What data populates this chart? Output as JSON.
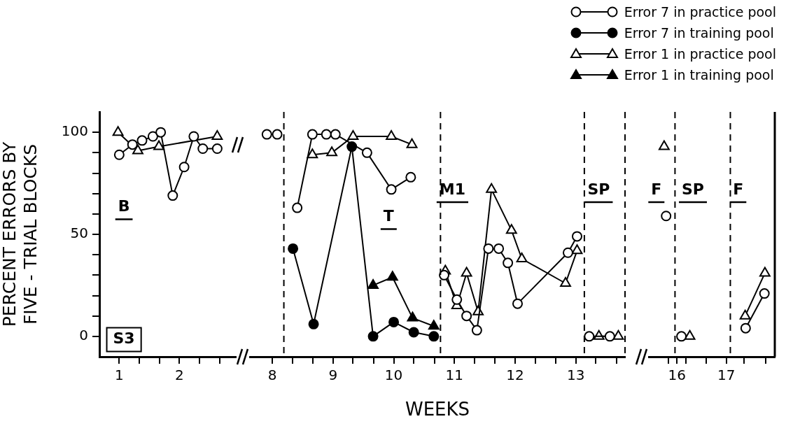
{
  "chart_data": [
    {
      "type": "line",
      "ylabel": "PERCENT ERRORS BY\nFIVE - TRIAL BLOCKS",
      "xlim": [
        0.67,
        2.94
      ],
      "xticks": [
        1,
        {
          "value": 1.33,
          "label": null
        },
        {
          "value": 1.67,
          "label": null
        },
        2,
        {
          "value": 2.33,
          "label": null
        },
        {
          "value": 2.67,
          "label": null
        }
      ],
      "ylim": [
        -10,
        110
      ],
      "yticks": [
        0,
        {
          "value": 10,
          "label": null
        },
        {
          "value": 20,
          "label": null
        },
        {
          "value": 30,
          "label": null
        },
        {
          "value": 40,
          "label": null
        },
        50,
        {
          "value": 60,
          "label": null
        },
        {
          "value": 70,
          "label": null
        },
        {
          "value": 80,
          "label": null
        },
        {
          "value": 90,
          "label": null
        },
        100
      ],
      "grid": false,
      "line_style": "solid",
      "annotations": [
        "S3",
        "B"
      ],
      "series": [
        {
          "color": "#000000",
          "marker": "circle-open",
          "x": [
            1.0,
            1.22,
            1.38,
            1.56,
            1.69,
            1.89,
            2.08,
            2.24,
            2.39,
            2.63
          ],
          "values": [
            89,
            94,
            96,
            98,
            100,
            69,
            83,
            98,
            92,
            92
          ]
        },
        {
          "color": "#000000",
          "marker": "triangle-open",
          "x": [
            0.98,
            1.31,
            1.66,
            2.63
          ],
          "values": [
            100,
            91,
            93,
            98
          ]
        }
      ]
    },
    {
      "type": "line",
      "xlabel": "WEEKS",
      "xlim": [
        7.63,
        13.81
      ],
      "xticks": [
        8,
        {
          "value": 8.33,
          "label": null
        },
        {
          "value": 8.67,
          "label": null
        },
        9,
        {
          "value": 9.33,
          "label": null
        },
        {
          "value": 9.67,
          "label": null
        },
        10,
        {
          "value": 10.33,
          "label": null
        },
        {
          "value": 10.67,
          "label": null
        },
        11,
        {
          "value": 11.33,
          "label": null
        },
        {
          "value": 11.67,
          "label": null
        },
        12,
        {
          "value": 12.33,
          "label": null
        },
        {
          "value": 12.67,
          "label": null
        },
        13,
        {
          "value": 13.33,
          "label": null
        },
        {
          "value": 13.67,
          "label": null
        }
      ],
      "ylim": [
        -10,
        110
      ],
      "yticks": [
        0,
        50,
        100
      ],
      "tick_labels": "x",
      "grid": false,
      "legend": "top right",
      "line_style": "solid",
      "ref_lines": [
        {
          "axis": "x",
          "value": 8.19,
          "color": "#000000",
          "line_style": "dashed"
        },
        {
          "axis": "x",
          "value": 10.77,
          "color": "#000000",
          "line_style": "dashed"
        },
        {
          "axis": "x",
          "value": 13.14,
          "color": "#000000",
          "line_style": "dashed"
        },
        {
          "axis": "x",
          "value": 13.81,
          "color": "#000000",
          "line_style": "dashed"
        }
      ],
      "annotations": [
        "T",
        "M1",
        "SP"
      ],
      "series": [
        {
          "name": "Error 7 in practice pool",
          "color": "#000000",
          "marker": "circle-open",
          "x": [
            7.91,
            8.08,
            8.19,
            8.41,
            8.66,
            8.89,
            9.04,
            9.56,
            9.96,
            10.28,
            10.77,
            10.83,
            11.04,
            11.2,
            11.37,
            11.56,
            11.73,
            11.88,
            12.04,
            12.87,
            13.02,
            13.14,
            13.22,
            13.56
          ],
          "values": [
            99,
            99,
            null,
            63,
            99,
            99,
            99,
            90,
            72,
            78,
            null,
            30,
            18,
            10,
            3,
            43,
            43,
            36,
            16,
            41,
            49,
            null,
            0,
            0
          ]
        },
        {
          "name": "Error 7 in training pool",
          "color": "#000000",
          "marker": "circle",
          "x": [
            8.34,
            8.68,
            9.31,
            9.66,
            10.0,
            10.33,
            10.66
          ],
          "values": [
            43,
            6,
            93,
            0,
            7,
            2,
            0
          ]
        },
        {
          "name": "Error 1 in practice pool",
          "color": "#000000",
          "marker": "triangle-open",
          "x": [
            8.66,
            8.98,
            9.33,
            9.96,
            10.3,
            10.77,
            10.85,
            11.04,
            11.2,
            11.39,
            11.61,
            11.94,
            12.11,
            12.83,
            13.02,
            13.14,
            13.38,
            13.7
          ],
          "values": [
            89,
            90,
            98,
            98,
            94,
            null,
            32,
            15,
            31,
            12,
            72,
            52,
            38,
            26,
            42,
            null,
            0,
            0
          ]
        },
        {
          "name": "Error 1 in training pool",
          "color": "#000000",
          "marker": "triangle",
          "x": [
            9.66,
            9.98,
            10.31,
            10.66
          ],
          "values": [
            25,
            29,
            9,
            5
          ]
        }
      ]
    },
    {
      "type": "line",
      "xlim": [
        15.43,
        17.98
      ],
      "xticks": [
        {
          "value": 15.83,
          "label": null
        },
        16,
        {
          "value": 16.18,
          "label": null
        },
        {
          "value": 16.59,
          "label": null
        },
        17,
        {
          "value": 17.36,
          "label": null
        },
        {
          "value": 17.79,
          "label": null
        }
      ],
      "ylim": [
        -10,
        110
      ],
      "yticks": [
        0,
        50,
        100
      ],
      "tick_labels": "x",
      "grid": false,
      "line_style": "solid",
      "ref_lines": [
        {
          "axis": "x",
          "value": 15.96,
          "color": "#000000",
          "line_style": "dashed"
        },
        {
          "axis": "x",
          "value": 17.08,
          "color": "#000000",
          "line_style": "dashed"
        }
      ],
      "annotations": [
        "F",
        "SP",
        "F"
      ],
      "series": [
        {
          "color": "#000000",
          "marker": "circle-open",
          "x": [
            15.78,
            15.96,
            16.09,
            17.08,
            17.39,
            17.77
          ],
          "values": [
            59,
            null,
            0,
            null,
            4,
            21
          ]
        },
        {
          "color": "#000000",
          "marker": "triangle-open",
          "x": [
            15.74,
            15.96,
            16.26,
            17.08,
            17.38,
            17.78
          ],
          "values": [
            93,
            null,
            0,
            null,
            10,
            31
          ]
        }
      ]
    }
  ]
}
